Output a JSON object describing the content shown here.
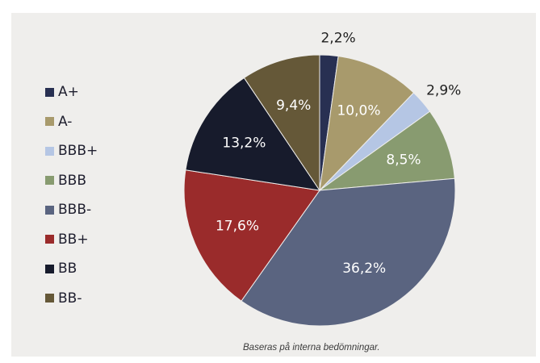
{
  "chart_data": {
    "type": "pie",
    "categories": [
      "A+",
      "A-",
      "BBB+",
      "BBB",
      "BBB-",
      "BB+",
      "BB",
      "BB-"
    ],
    "values": [
      2.2,
      10.0,
      2.9,
      8.5,
      36.2,
      17.6,
      13.2,
      9.4
    ],
    "labels": [
      "2,2%",
      "10,0%",
      "2,9%",
      "8,5%",
      "36,2%",
      "17,6%",
      "13,2%",
      "9,4%"
    ],
    "colors": [
      "#283052",
      "#a89a6c",
      "#b5c6e4",
      "#889b70",
      "#5a6480",
      "#9a2b2b",
      "#171b2c",
      "#655838"
    ],
    "label_colors": [
      "#202020",
      "#ffffff",
      "#202020",
      "#ffffff",
      "#ffffff",
      "#ffffff",
      "#ffffff",
      "#ffffff"
    ],
    "start": "12 o'clock",
    "direction": "clockwise",
    "legend_position": "left"
  },
  "footnote": "Baseras på interna bedömningar."
}
